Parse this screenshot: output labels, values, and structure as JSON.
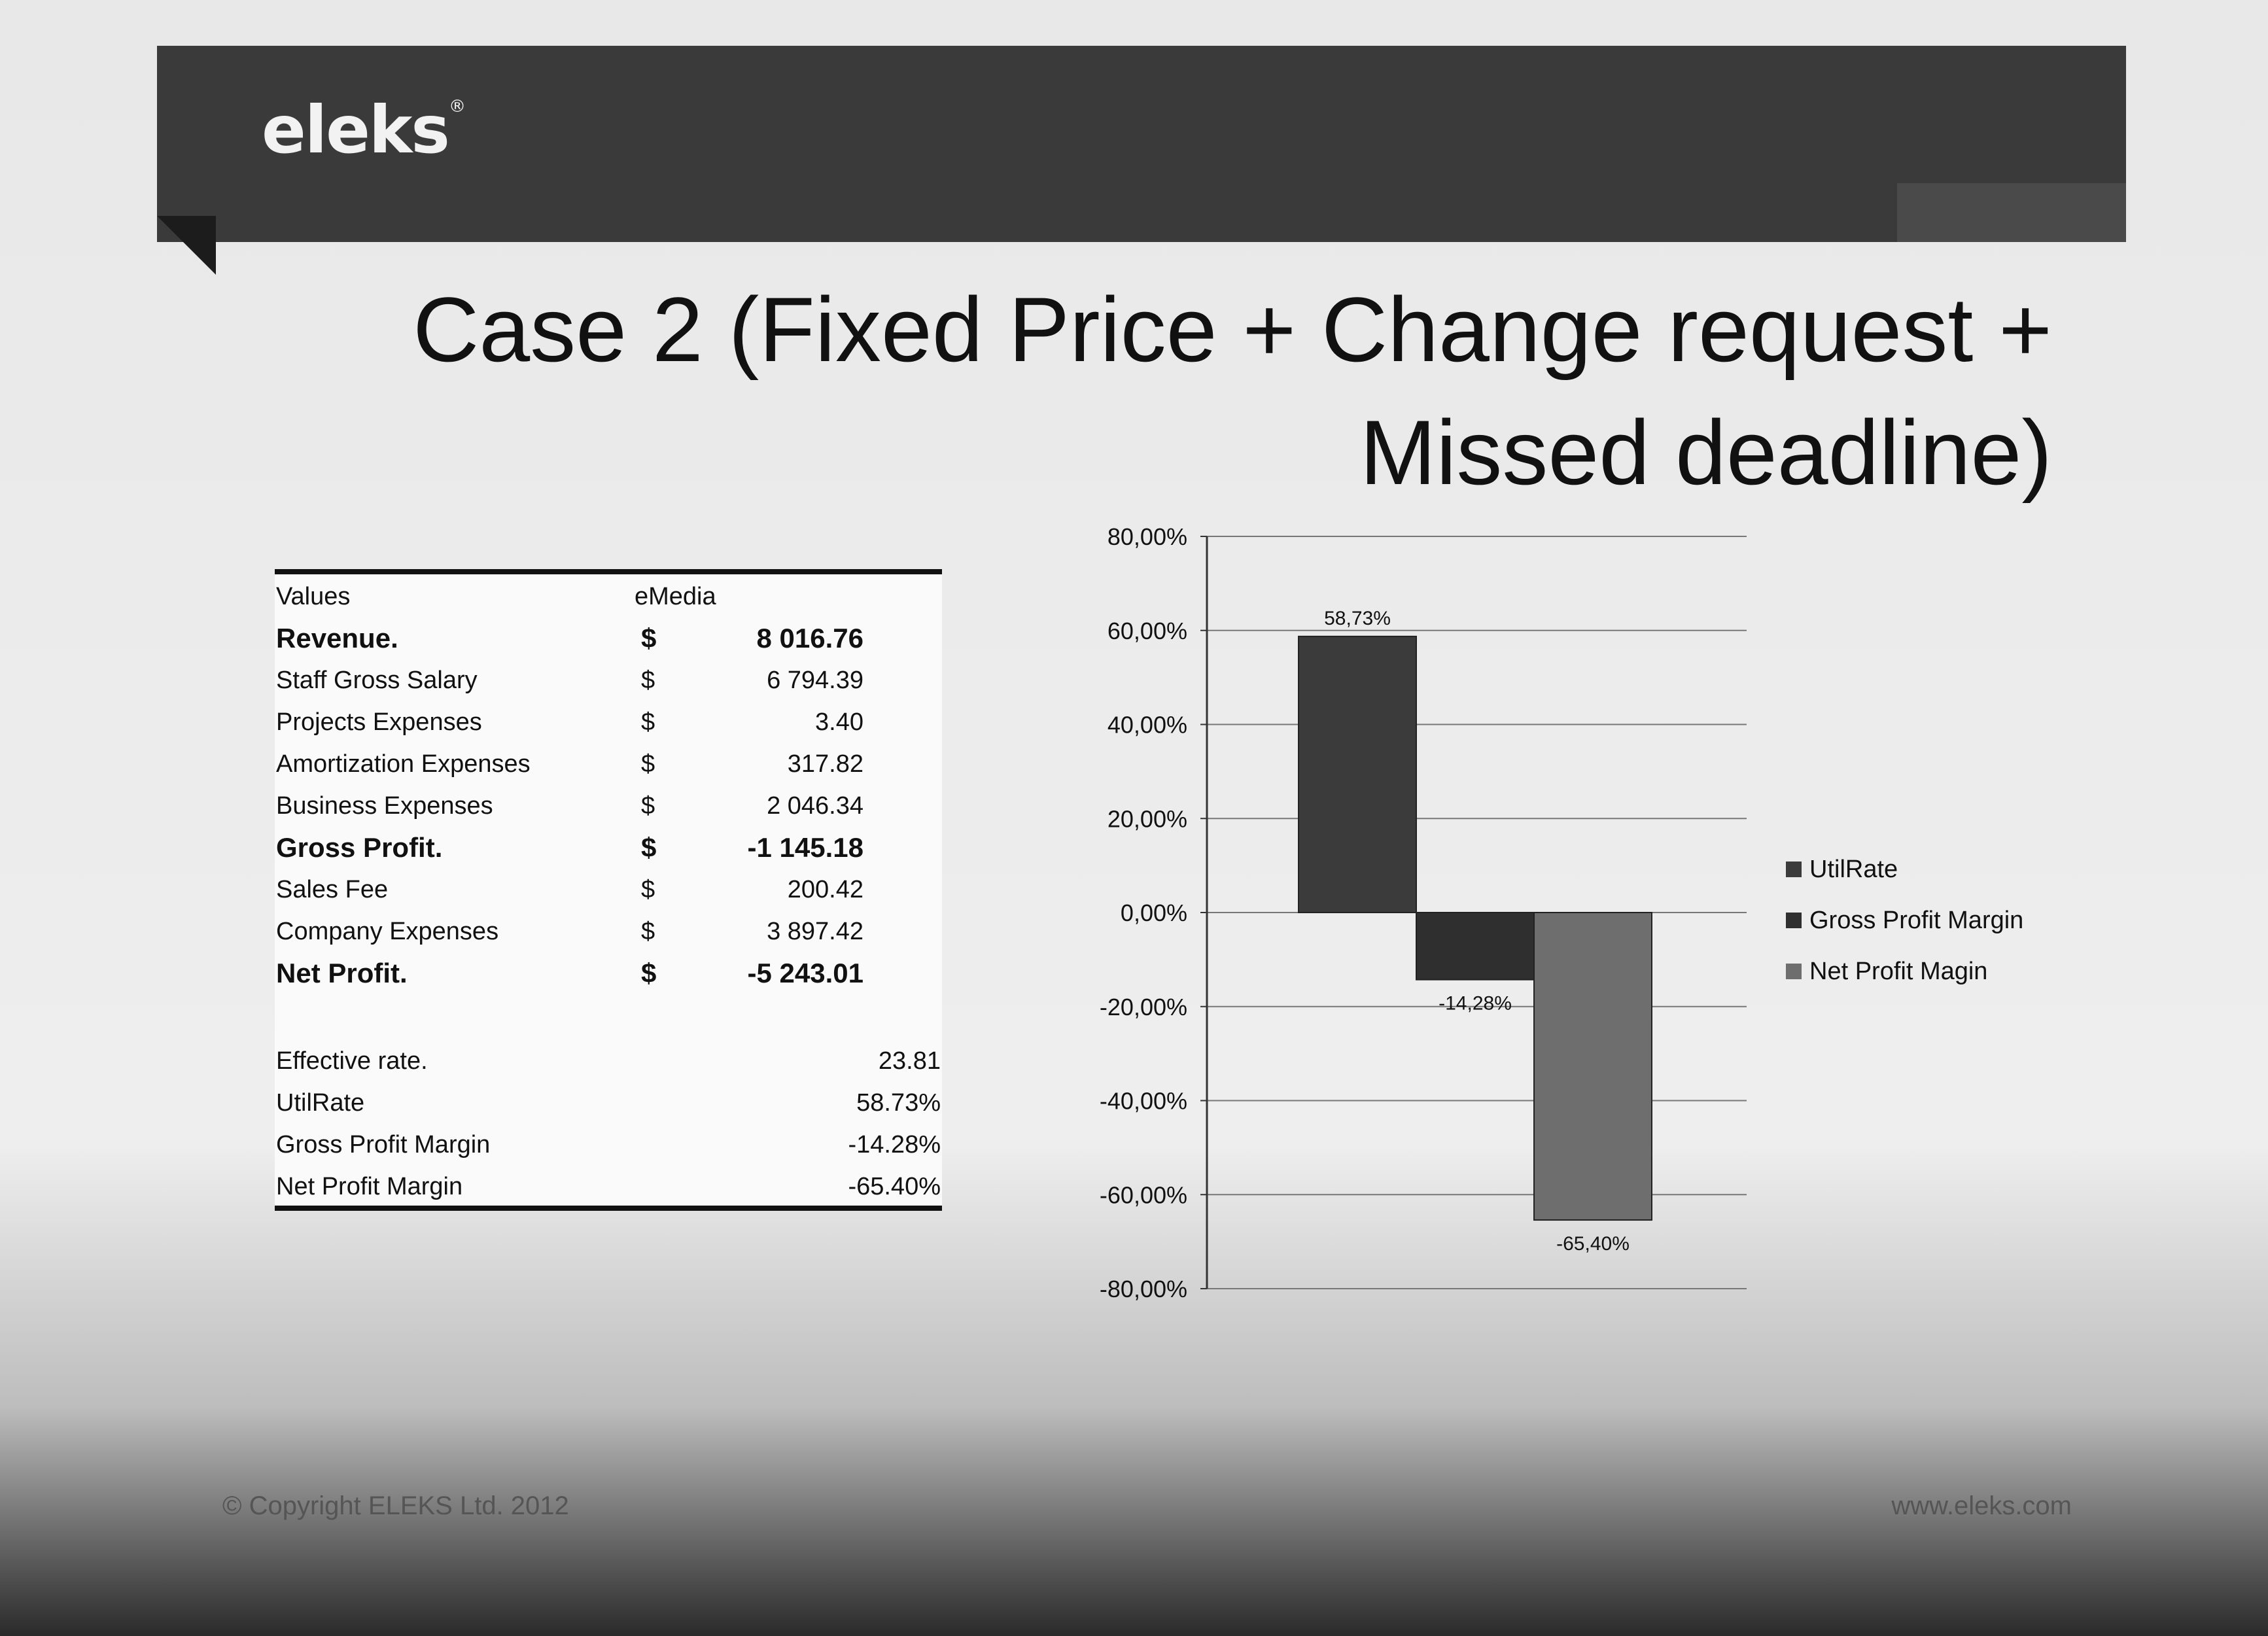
{
  "header": {
    "logo_text": "eleks",
    "logo_mark": "®"
  },
  "title": {
    "line1": "Case 2 (Fixed Price + Change request +",
    "line2": "Missed deadline)"
  },
  "table": {
    "col_header_label": "Values",
    "col_header_value": "eMedia",
    "rows": [
      {
        "label": "Revenue.",
        "currency": "$",
        "amount": "8 016.76",
        "bold": true
      },
      {
        "label": "Staff Gross Salary",
        "currency": "$",
        "amount": "6 794.39",
        "bold": false
      },
      {
        "label": "Projects Expenses",
        "currency": "$",
        "amount": "3.40",
        "bold": false
      },
      {
        "label": "Amortization Expenses",
        "currency": "$",
        "amount": "317.82",
        "bold": false
      },
      {
        "label": "Business Expenses",
        "currency": "$",
        "amount": "2 046.34",
        "bold": false
      },
      {
        "label": "Gross Profit.",
        "currency": "$",
        "amount": "-1 145.18",
        "bold": true
      },
      {
        "label": "Sales Fee",
        "currency": "$",
        "amount": "200.42",
        "bold": false
      },
      {
        "label": "Company Expenses",
        "currency": "$",
        "amount": "3 897.42",
        "bold": false
      },
      {
        "label": "Net Profit.",
        "currency": "$",
        "amount": "-5 243.01",
        "bold": true
      }
    ],
    "metrics": [
      {
        "label": "Effective rate.",
        "value": "23.81"
      },
      {
        "label": "UtilRate",
        "value": "58.73%"
      },
      {
        "label": "Gross Profit Margin",
        "value": "-14.28%"
      },
      {
        "label": "Net Profit Margin",
        "value": "-65.40%"
      }
    ]
  },
  "chart_data": {
    "type": "bar",
    "categories": [
      ""
    ],
    "series": [
      {
        "name": "UtilRate",
        "values": [
          58.73
        ],
        "label": "58,73%",
        "color": "#3b3b3b"
      },
      {
        "name": "Gross Profit Margin",
        "values": [
          -14.28
        ],
        "label": "-14,28%",
        "color": "#2f2f2f"
      },
      {
        "name": "Net Profit Magin",
        "values": [
          -65.4
        ],
        "label": "-65,40%",
        "color": "#6e6e6e"
      }
    ],
    "ylim": [
      -80,
      80
    ],
    "yticks": [
      "80,00%",
      "60,00%",
      "40,00%",
      "20,00%",
      "0,00%",
      "-20,00%",
      "-40,00%",
      "-60,00%",
      "-80,00%"
    ],
    "grid": true,
    "legend": "right"
  },
  "footer": {
    "copyright": "© Copyright ELEKS Ltd. 2012",
    "url": "www.eleks.com"
  }
}
